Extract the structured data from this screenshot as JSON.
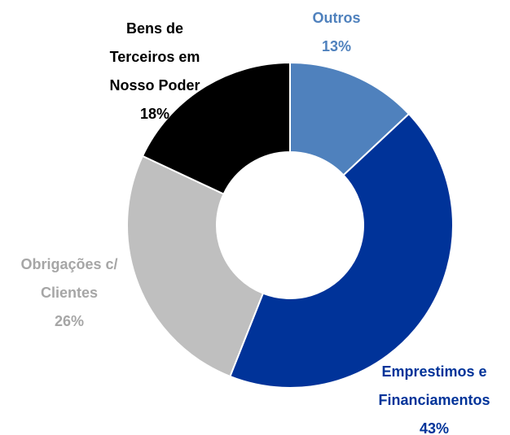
{
  "chart_data": {
    "type": "donut",
    "categories": [
      "Outros",
      "Emprestimos e Financiamentos",
      "Obrigações c/ Clientes",
      "Bens de Terceiros em Nosso Poder"
    ],
    "values": [
      13,
      43,
      26,
      18
    ],
    "value_labels": [
      "13%",
      "43%",
      "26%",
      "18%"
    ],
    "colors": [
      "#4f81bd",
      "#003399",
      "#bfbfbf",
      "#000000"
    ],
    "label_colors": [
      "#4f81bd",
      "#003399",
      "#a6a6a6",
      "#000000"
    ]
  }
}
